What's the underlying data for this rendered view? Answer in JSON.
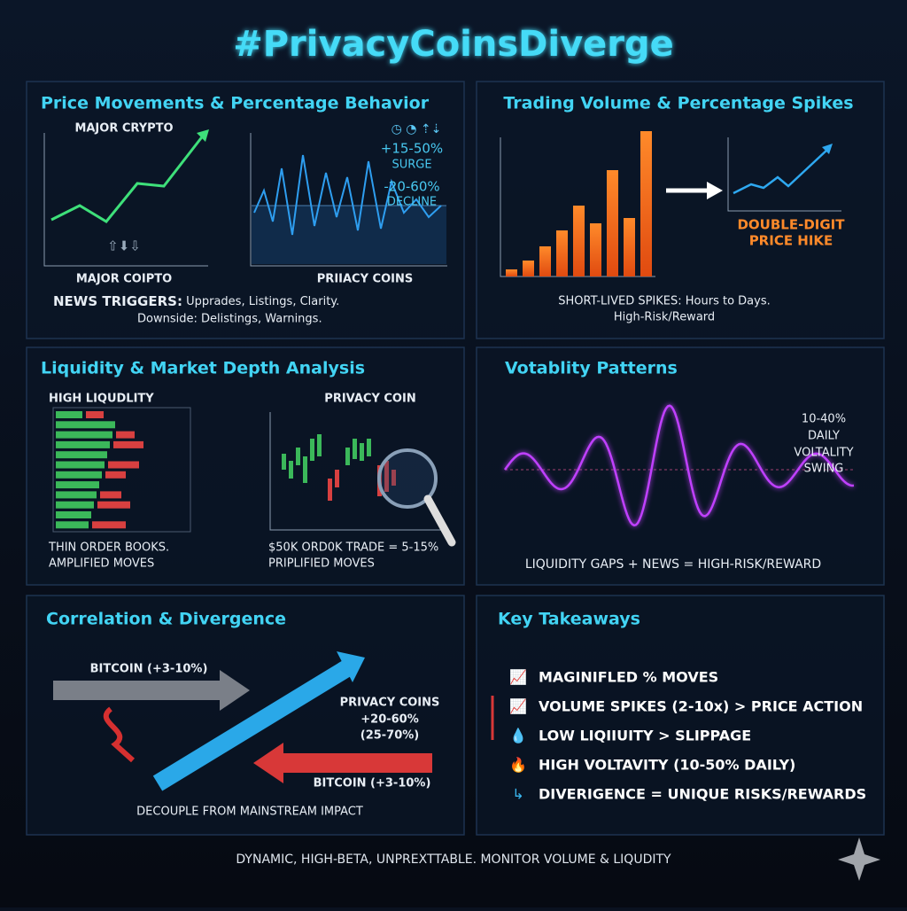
{
  "header": {
    "title": "#PrivacyCoinsDiverge"
  },
  "panels": [
    {
      "title": "Price Movements & Percentage Behavior",
      "labels": [
        "MAJOR CRYPTO",
        "MAJOR COIPTO",
        "PRIIACY COINS",
        "+15-50%",
        "SURGE",
        "-20-60%",
        "DECLINE"
      ],
      "note": {
        "lead": "NEWS TRIGGERS:",
        "text": " Upprades, Listings, Clarity.",
        "second": "Downside: Delistings, Warnings."
      }
    },
    {
      "title": "Trading Volume & Percentage Spikes",
      "labels": [
        "DOUBLE-DIGIT",
        "PRICE HIKE"
      ],
      "notes": [
        "SHORT-LIVED SPIKES: Hours to Days.",
        "High-Risk/Reward"
      ]
    },
    {
      "title": "Liquidity & Market Depth Analysis",
      "labels": [
        "HIGH LIQUDLITY",
        "PRIVACY COIN"
      ],
      "notes": [
        "THIN ORDER BOOKS.",
        "AMPLIFIED MOVES",
        "$50K ORD0K TRADE = 5-15%",
        "PRIPLIFIED MOVES"
      ]
    },
    {
      "title": "Votablity Patterns",
      "labels": [
        "10-40%",
        "DAILY",
        "VOLTALITY",
        "SWING"
      ],
      "notes": [
        "LIQUIDITY GAPS + NEWS = HIGH-RISK/REWARD"
      ]
    },
    {
      "title": "Correlation & Divergence",
      "labels": [
        "BITCOIN (+3-10%)",
        "PRIVACY COINS",
        "+20-60%",
        "(25-70%)",
        "BITCOIN (+3-10%)"
      ],
      "notes": [
        "DECOUPLE FROM MAINSTREAM IMPACT"
      ]
    },
    {
      "title": "Key Takeaways",
      "items": [
        "MAGINIFLED % MOVES",
        "VOLUME SPIKES (2-10x) > PRICE ACTION",
        "LOW LIQIIUITY > SLIPPAGE",
        "HIGH VOLTAVITY (10-50% DAILY)",
        "DIVERIGENCE = UNIQUE RISKS/REWARDS"
      ]
    }
  ],
  "footer": {
    "text": "DYNAMIC, HIGH-BETA, UNPREXTTABLE. MONITOR VOLUME & LIQUDITY"
  }
}
